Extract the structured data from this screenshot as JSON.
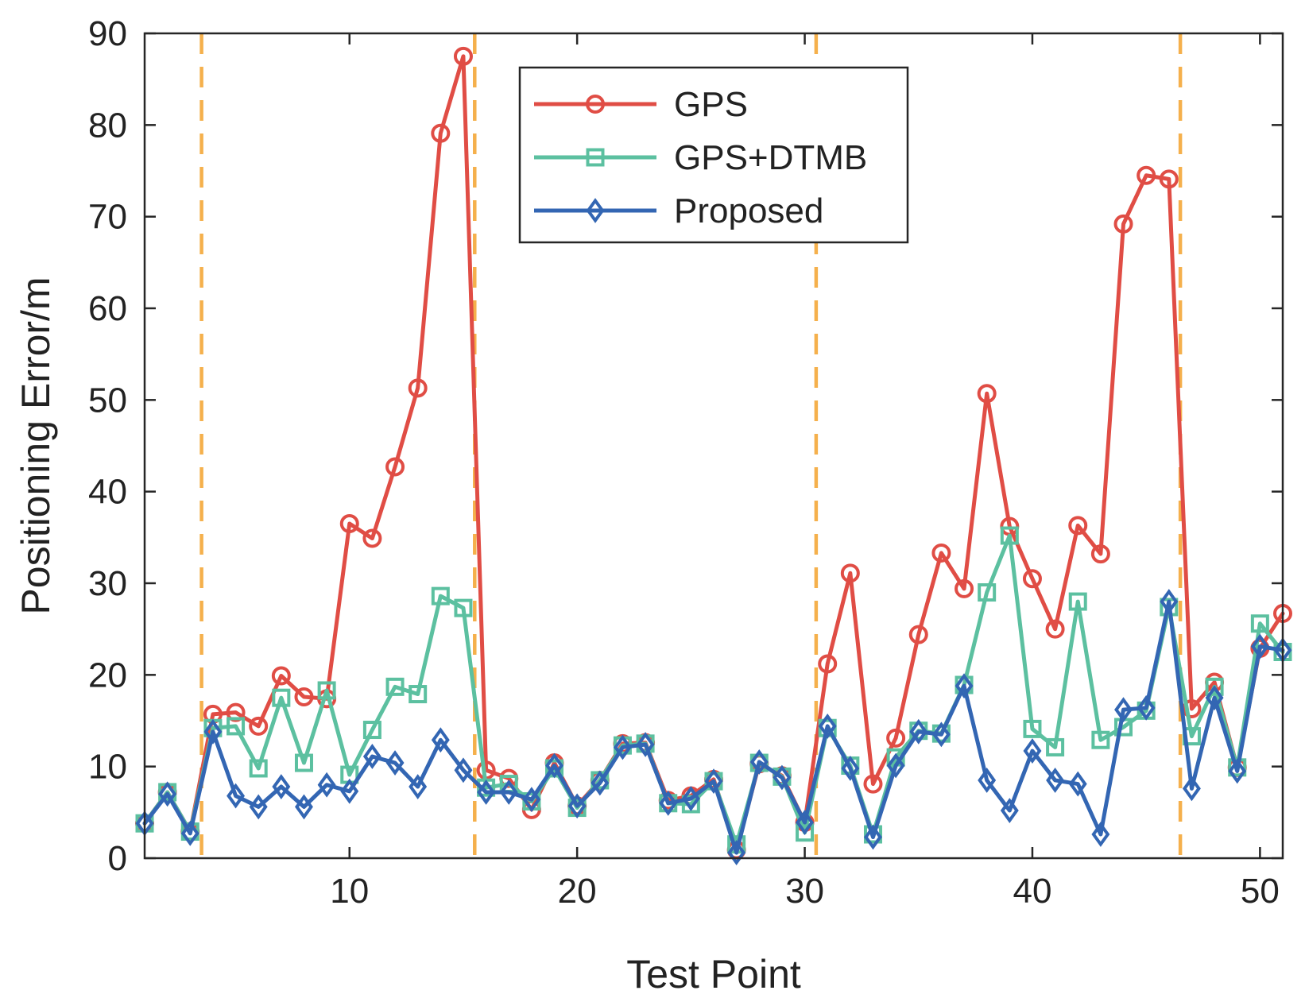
{
  "chart_data": {
    "type": "line",
    "title": "",
    "xlabel": "Test Point",
    "ylabel": "Positioning Error/m",
    "xlim": [
      1,
      51
    ],
    "ylim": [
      0,
      90
    ],
    "xticks": [
      10,
      20,
      30,
      40,
      50
    ],
    "yticks": [
      0,
      10,
      20,
      30,
      40,
      50,
      60,
      70,
      80,
      90
    ],
    "grid": false,
    "legend_position": "top-center",
    "vlines": {
      "x": [
        3.5,
        15.5,
        30.5,
        46.5
      ],
      "color": "#f5b04c",
      "style": "dashed"
    },
    "x": [
      1,
      2,
      3,
      4,
      5,
      6,
      7,
      8,
      9,
      10,
      11,
      12,
      13,
      14,
      15,
      16,
      17,
      18,
      19,
      20,
      21,
      22,
      23,
      24,
      25,
      26,
      27,
      28,
      29,
      30,
      31,
      32,
      33,
      34,
      35,
      36,
      37,
      38,
      39,
      40,
      41,
      42,
      43,
      44,
      45,
      46,
      47,
      48,
      49,
      50,
      51
    ],
    "series": [
      {
        "name": "GPS",
        "color": "#e04d45",
        "marker": "circle",
        "values": [
          3.8,
          7.2,
          2.9,
          15.7,
          15.9,
          14.4,
          19.9,
          17.6,
          17.4,
          36.5,
          34.9,
          42.7,
          51.3,
          79.1,
          87.5,
          9.6,
          8.7,
          5.3,
          10.4,
          5.7,
          8.5,
          12.5,
          12.6,
          6.3,
          6.8,
          8.6,
          0.9,
          10.3,
          9.0,
          3.9,
          21.2,
          31.1,
          8.1,
          13.1,
          24.4,
          33.3,
          29.4,
          50.7,
          36.2,
          30.5,
          25.0,
          36.3,
          33.2,
          69.2,
          74.5,
          74.1,
          16.3,
          19.2,
          9.9,
          22.9,
          26.7
        ]
      },
      {
        "name": "GPS+DTMB",
        "color": "#5cc0a0",
        "marker": "square",
        "values": [
          3.8,
          7.2,
          2.9,
          14.2,
          14.4,
          9.8,
          17.5,
          10.4,
          18.3,
          9.1,
          14.0,
          18.7,
          17.9,
          28.6,
          27.3,
          7.7,
          8.1,
          6.2,
          9.8,
          5.5,
          8.5,
          12.3,
          12.5,
          6.0,
          5.9,
          8.4,
          1.5,
          10.4,
          8.9,
          2.8,
          14.2,
          10.1,
          2.6,
          11.0,
          13.9,
          13.6,
          18.9,
          29.0,
          35.2,
          14.1,
          12.1,
          28.0,
          12.9,
          14.3,
          16.1,
          27.4,
          13.3,
          18.7,
          9.9,
          25.6,
          22.5
        ]
      },
      {
        "name": "Proposed",
        "color": "#3366b3",
        "marker": "diamond",
        "values": [
          3.8,
          7.0,
          2.7,
          13.8,
          6.8,
          5.6,
          7.8,
          5.6,
          8.0,
          7.3,
          11.1,
          10.4,
          7.8,
          12.9,
          9.6,
          7.2,
          7.2,
          6.4,
          10.1,
          5.7,
          8.2,
          12.1,
          12.4,
          6.0,
          6.5,
          8.4,
          0.6,
          10.5,
          8.8,
          3.9,
          14.4,
          9.8,
          2.3,
          10.1,
          13.8,
          13.5,
          18.8,
          8.5,
          5.2,
          11.7,
          8.5,
          8.1,
          2.6,
          16.2,
          16.4,
          28.0,
          7.6,
          17.5,
          9.5,
          23.1,
          22.7
        ]
      }
    ]
  }
}
